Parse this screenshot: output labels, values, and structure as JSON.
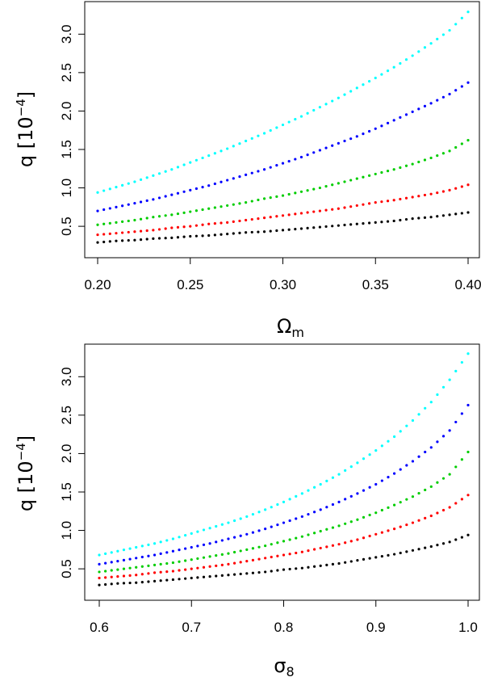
{
  "chart_data": [
    {
      "type": "scatter",
      "xlabel": "Ω",
      "xlabel_sub": "m",
      "ylabel": "q [10",
      "ylabel_sup": "−4",
      "ylabel_end": "]",
      "xlim": [
        0.2,
        0.4
      ],
      "ylim": [
        0.27,
        3.35
      ],
      "xticks": [
        "0.20",
        "0.25",
        "0.30",
        "0.35",
        "0.40"
      ],
      "xtick_values": [
        0.2,
        0.25,
        0.3,
        0.35,
        0.4
      ],
      "yticks": [
        "0.5",
        "1.0",
        "1.5",
        "2.0",
        "2.5",
        "3.0"
      ],
      "ytick_values": [
        0.5,
        1.0,
        1.5,
        2.0,
        2.5,
        3.0
      ],
      "grid": false,
      "x": [
        0.2,
        0.21,
        0.22,
        0.23,
        0.24,
        0.25,
        0.26,
        0.27,
        0.28,
        0.29,
        0.3,
        0.31,
        0.32,
        0.33,
        0.34,
        0.35,
        0.36,
        0.37,
        0.38,
        0.39,
        0.4
      ],
      "series": [
        {
          "color": "#000000",
          "values": [
            0.29,
            0.31,
            0.32,
            0.34,
            0.35,
            0.37,
            0.38,
            0.4,
            0.42,
            0.43,
            0.45,
            0.47,
            0.49,
            0.51,
            0.53,
            0.55,
            0.57,
            0.6,
            0.62,
            0.65,
            0.68
          ]
        },
        {
          "color": "#ff0000",
          "values": [
            0.39,
            0.41,
            0.43,
            0.45,
            0.48,
            0.5,
            0.53,
            0.55,
            0.58,
            0.61,
            0.64,
            0.67,
            0.7,
            0.73,
            0.77,
            0.81,
            0.84,
            0.88,
            0.92,
            0.97,
            1.04
          ]
        },
        {
          "color": "#00cd00",
          "values": [
            0.52,
            0.55,
            0.58,
            0.62,
            0.65,
            0.69,
            0.73,
            0.77,
            0.81,
            0.86,
            0.9,
            0.95,
            1.0,
            1.06,
            1.12,
            1.18,
            1.24,
            1.31,
            1.39,
            1.48,
            1.62
          ]
        },
        {
          "color": "#0000ff",
          "values": [
            0.7,
            0.75,
            0.8,
            0.85,
            0.91,
            0.97,
            1.03,
            1.1,
            1.17,
            1.24,
            1.32,
            1.4,
            1.49,
            1.58,
            1.67,
            1.77,
            1.88,
            1.99,
            2.1,
            2.22,
            2.37
          ]
        },
        {
          "color": "#00ffff",
          "values": [
            0.94,
            1.01,
            1.08,
            1.16,
            1.24,
            1.33,
            1.42,
            1.51,
            1.61,
            1.71,
            1.82,
            1.93,
            2.05,
            2.17,
            2.3,
            2.43,
            2.57,
            2.72,
            2.88,
            3.05,
            3.29
          ]
        }
      ]
    },
    {
      "type": "scatter",
      "xlabel": "σ",
      "xlabel_sub": "8",
      "ylabel": "q [10",
      "ylabel_sup": "−4",
      "ylabel_end": "]",
      "xlim": [
        0.6,
        1.0
      ],
      "ylim": [
        0.27,
        3.35
      ],
      "xticks": [
        "0.6",
        "0.7",
        "0.8",
        "0.9",
        "1.0"
      ],
      "xtick_values": [
        0.6,
        0.7,
        0.8,
        0.9,
        1.0
      ],
      "yticks": [
        "0.5",
        "1.0",
        "1.5",
        "2.0",
        "2.5",
        "3.0"
      ],
      "ytick_values": [
        0.5,
        1.0,
        1.5,
        2.0,
        2.5,
        3.0
      ],
      "grid": false,
      "x": [
        0.6,
        0.62,
        0.64,
        0.66,
        0.68,
        0.7,
        0.72,
        0.74,
        0.76,
        0.78,
        0.8,
        0.82,
        0.84,
        0.86,
        0.88,
        0.9,
        0.92,
        0.94,
        0.96,
        0.98,
        1.0
      ],
      "series": [
        {
          "color": "#000000",
          "values": [
            0.29,
            0.31,
            0.32,
            0.34,
            0.36,
            0.38,
            0.4,
            0.42,
            0.44,
            0.46,
            0.49,
            0.51,
            0.54,
            0.57,
            0.61,
            0.65,
            0.69,
            0.74,
            0.79,
            0.85,
            0.94
          ]
        },
        {
          "color": "#ff0000",
          "values": [
            0.38,
            0.4,
            0.42,
            0.45,
            0.47,
            0.5,
            0.53,
            0.56,
            0.6,
            0.64,
            0.68,
            0.72,
            0.77,
            0.82,
            0.88,
            0.95,
            1.02,
            1.1,
            1.19,
            1.3,
            1.46
          ]
        },
        {
          "color": "#00cd00",
          "values": [
            0.46,
            0.49,
            0.52,
            0.55,
            0.58,
            0.62,
            0.66,
            0.7,
            0.75,
            0.8,
            0.86,
            0.92,
            0.99,
            1.06,
            1.14,
            1.23,
            1.33,
            1.44,
            1.57,
            1.73,
            2.02
          ]
        },
        {
          "color": "#0000ff",
          "values": [
            0.56,
            0.6,
            0.64,
            0.68,
            0.73,
            0.78,
            0.83,
            0.89,
            0.95,
            1.02,
            1.1,
            1.18,
            1.27,
            1.37,
            1.48,
            1.6,
            1.74,
            1.9,
            2.08,
            2.3,
            2.63
          ]
        },
        {
          "color": "#00ffff",
          "values": [
            0.68,
            0.73,
            0.78,
            0.83,
            0.89,
            0.96,
            1.03,
            1.1,
            1.18,
            1.27,
            1.37,
            1.48,
            1.6,
            1.73,
            1.88,
            2.04,
            2.22,
            2.43,
            2.67,
            2.96,
            3.3
          ]
        }
      ]
    }
  ]
}
